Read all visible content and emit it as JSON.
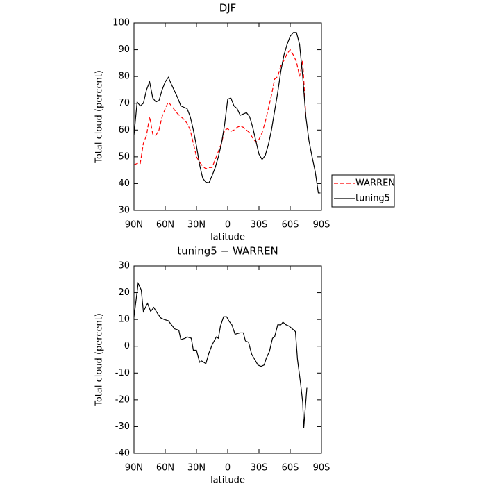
{
  "chart_data": [
    {
      "type": "line",
      "title": "DJF",
      "xlabel": "latitude",
      "ylabel": "Total cloud (percent)",
      "xlim": [
        90,
        -90
      ],
      "xticks": [
        {
          "value": 90,
          "label": "90N"
        },
        {
          "value": 60,
          "label": "60N"
        },
        {
          "value": 30,
          "label": "30N"
        },
        0,
        {
          "value": -30,
          "label": "30S"
        },
        {
          "value": -60,
          "label": "60S"
        },
        {
          "value": -90,
          "label": "90S"
        }
      ],
      "ylim": [
        30,
        100
      ],
      "yticks": [
        30,
        40,
        50,
        60,
        70,
        80,
        90,
        100
      ],
      "legend": "right",
      "series": [
        {
          "name": "WARREN",
          "color": "#ff0000",
          "dash": true,
          "x": [
            90,
            87,
            84,
            81,
            78,
            75,
            72,
            69,
            66,
            63,
            60,
            57,
            54,
            51,
            48,
            45,
            42,
            39,
            36,
            33,
            30,
            27,
            24,
            21,
            18,
            15,
            12,
            9,
            6,
            3,
            0,
            -3,
            -6,
            -9,
            -12,
            -15,
            -18,
            -21,
            -24,
            -27,
            -30,
            -33,
            -36,
            -39,
            -42,
            -45,
            -48,
            -51,
            -54,
            -57,
            -60,
            -63,
            -66,
            -69,
            -72,
            -75
          ],
          "values": [
            47,
            47.5,
            47.5,
            55,
            58,
            65,
            58.5,
            58,
            60,
            65,
            68,
            70.5,
            69,
            67.5,
            66,
            65,
            64,
            62.5,
            60,
            55,
            50,
            48,
            46.5,
            45.5,
            46,
            46,
            49,
            52,
            55,
            60,
            60.5,
            59.5,
            60,
            61,
            61.5,
            61,
            60,
            59,
            57,
            55.5,
            56.5,
            59,
            63,
            68,
            73,
            79,
            80,
            84,
            86,
            88.5,
            90,
            88,
            85.5,
            80,
            86,
            65
          ]
        },
        {
          "name": "tuning5",
          "color": "#000000",
          "dash": false,
          "x": [
            90,
            87,
            84,
            81,
            78,
            75,
            72,
            69,
            66,
            63,
            60,
            57,
            54,
            51,
            48,
            45,
            42,
            39,
            36,
            33,
            30,
            27,
            24,
            21,
            18,
            15,
            12,
            9,
            6,
            3,
            0,
            -3,
            -6,
            -9,
            -12,
            -15,
            -18,
            -21,
            -24,
            -27,
            -30,
            -33,
            -36,
            -39,
            -42,
            -45,
            -48,
            -51,
            -54,
            -57,
            -60,
            -63,
            -66,
            -69,
            -72,
            -75,
            -78,
            -81,
            -84,
            -87,
            -89
          ],
          "values": [
            58,
            70.5,
            69,
            70,
            75,
            78,
            72,
            70.5,
            71,
            75,
            78,
            79.7,
            77,
            74.5,
            72,
            69,
            68.5,
            68,
            65,
            60,
            54,
            47,
            42,
            40.5,
            40.3,
            43,
            46,
            50,
            55,
            62,
            71.5,
            72,
            69,
            68,
            65.5,
            66,
            66.5,
            65,
            61,
            56,
            51,
            49,
            50.5,
            54.5,
            60,
            67,
            74,
            82,
            88,
            92,
            95,
            96.4,
            96.4,
            92,
            80,
            65,
            56,
            50,
            44.5,
            36.5,
            36.5
          ]
        }
      ]
    },
    {
      "type": "line",
      "title": "tuning5 − WARREN",
      "xlabel": "latitude",
      "ylabel": "Total cloud (percent)",
      "xlim": [
        90,
        -90
      ],
      "xticks": [
        {
          "value": 90,
          "label": "90N"
        },
        {
          "value": 60,
          "label": "60N"
        },
        {
          "value": 30,
          "label": "30N"
        },
        0,
        {
          "value": -30,
          "label": "30S"
        },
        {
          "value": -60,
          "label": "60S"
        },
        {
          "value": -90,
          "label": "90S"
        }
      ],
      "ylim": [
        -40,
        30
      ],
      "yticks": [
        -40,
        -30,
        -20,
        -10,
        0,
        10,
        20,
        30
      ],
      "series": [
        {
          "color": "#000000",
          "dash": false,
          "x": [
            90,
            86,
            83,
            81,
            77,
            74,
            71,
            67,
            64,
            61,
            57,
            54,
            51,
            47,
            45,
            41,
            39,
            35,
            33,
            30,
            27,
            25,
            21,
            18,
            15,
            11,
            9,
            7,
            4,
            1,
            -1,
            -4,
            -7,
            -12,
            -15,
            -17,
            -20,
            -23,
            -26,
            -29,
            -32,
            -35,
            -37,
            -40,
            -43,
            -45,
            -48,
            -51,
            -53,
            -56,
            -59,
            -62,
            -65,
            -67,
            -70,
            -72,
            -73,
            -76
          ],
          "values": [
            11,
            23.5,
            21,
            13,
            16,
            13,
            14.5,
            12,
            10.5,
            10,
            9.5,
            8,
            6.5,
            6,
            2.5,
            3,
            3.5,
            3,
            -1.5,
            -1.5,
            -6,
            -5.5,
            -6.5,
            -2.5,
            0.5,
            3.5,
            3,
            7.5,
            11,
            11,
            9.5,
            8,
            4.5,
            5,
            5,
            2,
            1.5,
            -3,
            -5,
            -7,
            -7.5,
            -7,
            -4.5,
            -2,
            3,
            3.5,
            8,
            8,
            9,
            8,
            7.5,
            6.5,
            5.5,
            -5,
            -14,
            -21,
            -30.5,
            -15.5
          ]
        }
      ]
    }
  ]
}
